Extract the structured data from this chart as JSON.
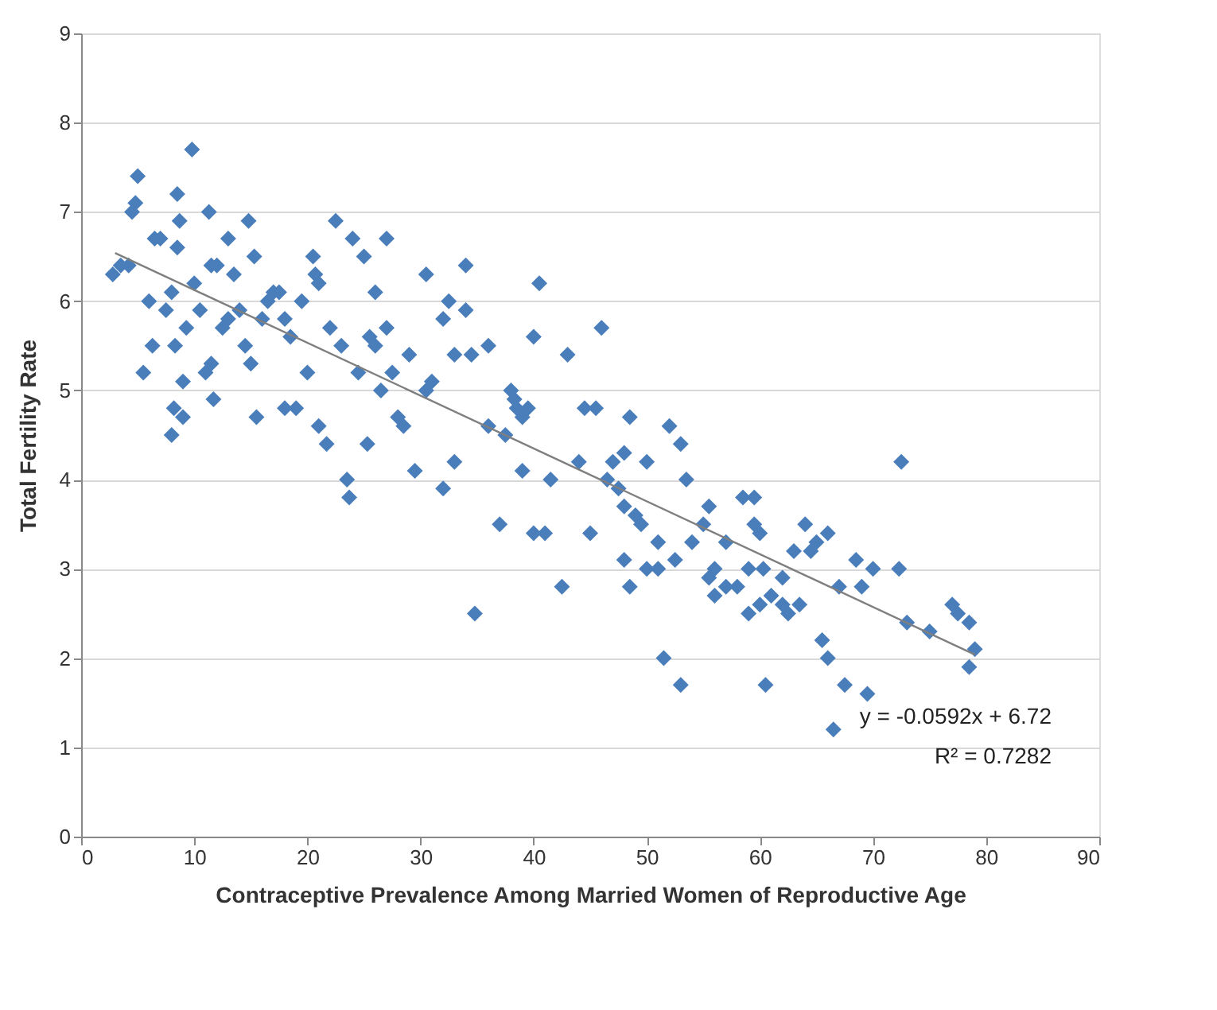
{
  "chart_data": {
    "type": "scatter",
    "xlabel": "Contraceptive Prevalence Among Married Women of Reproductive Age",
    "ylabel": "Total Fertility Rate",
    "xlim": [
      0,
      90
    ],
    "xticks": [
      0,
      10,
      20,
      30,
      40,
      50,
      60,
      70,
      80,
      90
    ],
    "ylim": [
      0,
      9
    ],
    "yticks": [
      0,
      1,
      2,
      3,
      4,
      5,
      6,
      7,
      8,
      9
    ],
    "grid": "y",
    "annotations": [
      "y = -0.0592x + 6.72",
      "R² = 0.7282"
    ],
    "series": [
      {
        "color": "#4a7ebb",
        "marker": "diamond",
        "x": [
          2.8,
          3.5,
          4.2,
          4.5,
          4.8,
          5,
          5.5,
          6,
          6.3,
          6.5,
          7,
          7.5,
          8,
          8,
          8.2,
          8.3,
          8.5,
          8.5,
          8.7,
          9,
          9,
          9.3,
          9.8,
          10,
          10.5,
          11,
          11.3,
          11.5,
          11.5,
          11.7,
          12,
          12.5,
          13,
          13,
          13.5,
          14,
          14.5,
          14.8,
          15,
          15.3,
          15.5,
          16,
          16.5,
          17,
          17.5,
          18,
          18,
          18.5,
          19,
          19.5,
          20,
          20.5,
          20.7,
          21,
          21,
          21.7,
          22,
          22.5,
          23,
          23.5,
          23.7,
          24,
          24.5,
          25,
          25.3,
          25.5,
          26,
          26,
          26.5,
          27,
          27,
          27.5,
          28,
          28.5,
          29,
          29.5,
          30.5,
          30.5,
          31,
          32,
          32,
          32.5,
          33,
          33,
          34,
          34,
          34.5,
          34.8,
          36,
          36,
          37,
          37.5,
          38,
          38.3,
          38.5,
          39,
          39,
          39.5,
          40,
          40,
          40.5,
          41,
          41.5,
          42.5,
          43,
          44,
          44.5,
          45,
          45.5,
          46,
          46.5,
          47,
          47.5,
          48,
          48,
          48,
          48.5,
          48.5,
          49,
          49.5,
          50,
          50,
          51,
          51,
          51.5,
          52,
          52.5,
          53,
          53,
          53.5,
          54,
          55,
          55.5,
          55.5,
          56,
          56,
          57,
          57,
          58,
          58.5,
          59,
          59,
          59.5,
          59.5,
          60,
          60,
          60.3,
          60.5,
          61,
          62,
          62,
          62.5,
          63,
          63.5,
          64,
          64.5,
          65,
          65.5,
          66,
          66,
          66.5,
          67,
          67.5,
          68.5,
          69,
          69.5,
          70,
          72.5,
          72.3,
          73,
          75,
          77,
          77.5,
          78.5,
          78.5,
          79
        ],
        "values": [
          6.3,
          6.4,
          6.4,
          7.0,
          7.1,
          7.4,
          5.2,
          6.0,
          5.5,
          6.7,
          6.7,
          5.9,
          6.1,
          4.5,
          4.8,
          5.5,
          7.2,
          6.6,
          6.9,
          5.1,
          4.7,
          5.7,
          7.7,
          6.2,
          5.9,
          5.2,
          7.0,
          6.4,
          5.3,
          4.9,
          6.4,
          5.7,
          5.8,
          6.7,
          6.3,
          5.9,
          5.5,
          6.9,
          5.3,
          6.5,
          4.7,
          5.8,
          6.0,
          6.1,
          6.1,
          4.8,
          5.8,
          5.6,
          4.8,
          6.0,
          5.2,
          6.5,
          6.3,
          4.6,
          6.2,
          4.4,
          5.7,
          6.9,
          5.5,
          4.0,
          3.8,
          6.7,
          5.2,
          6.5,
          4.4,
          5.6,
          6.1,
          5.5,
          5.0,
          5.7,
          6.7,
          5.2,
          4.7,
          4.6,
          5.4,
          4.1,
          5.0,
          6.3,
          5.1,
          3.9,
          5.8,
          6.0,
          4.2,
          5.4,
          6.4,
          5.9,
          5.4,
          2.5,
          4.6,
          5.5,
          3.5,
          4.5,
          5.0,
          4.9,
          4.8,
          4.7,
          4.1,
          4.8,
          5.6,
          3.4,
          6.2,
          3.4,
          4.0,
          2.8,
          5.4,
          4.2,
          4.8,
          3.4,
          4.8,
          5.7,
          4.0,
          4.2,
          3.9,
          4.3,
          3.7,
          3.1,
          4.7,
          2.8,
          3.6,
          3.5,
          3.0,
          4.2,
          3.3,
          3.0,
          2.0,
          4.6,
          3.1,
          1.7,
          4.4,
          4.0,
          3.3,
          3.5,
          3.7,
          2.9,
          3.0,
          2.7,
          2.8,
          3.3,
          2.8,
          3.8,
          3.0,
          2.5,
          3.8,
          3.5,
          3.4,
          2.6,
          3.0,
          1.7,
          2.7,
          2.6,
          2.9,
          2.5,
          3.2,
          2.6,
          3.5,
          3.2,
          3.3,
          2.2,
          3.4,
          2.0,
          1.2,
          2.8,
          1.7,
          3.1,
          2.8,
          1.6,
          3.0,
          4.2,
          3.0,
          2.4,
          2.3,
          2.6,
          2.5,
          2.4,
          1.9,
          2.1
        ]
      },
      {
        "type": "line",
        "color": "#7f7f7f",
        "x": [
          3,
          79
        ],
        "values": [
          6.54,
          2.04
        ]
      }
    ]
  }
}
